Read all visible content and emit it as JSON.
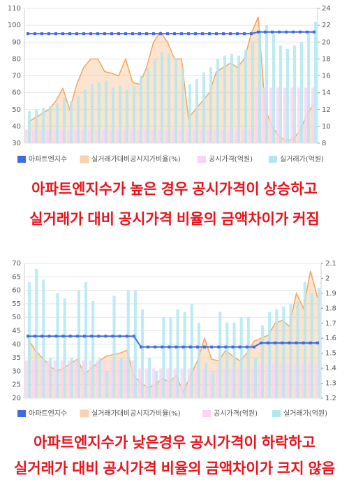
{
  "chart_data": [
    {
      "type": "combo",
      "ylim": [
        30,
        110
      ],
      "yticks": [
        30,
        40,
        50,
        60,
        70,
        80,
        90,
        100,
        110
      ],
      "y2lim": [
        8,
        24
      ],
      "y2ticks": [
        8,
        10,
        12,
        14,
        16,
        18,
        20,
        22,
        24
      ],
      "grid": true,
      "series": [
        {
          "name": "아파트엔지수",
          "kind": "line",
          "color": "#4169e1",
          "values": [
            95,
            95,
            95,
            95,
            95,
            95,
            95,
            95,
            95,
            95,
            95,
            95,
            95,
            95,
            95,
            95,
            95,
            95,
            95,
            95,
            95,
            95,
            95,
            95,
            95,
            95,
            95,
            95,
            95,
            95,
            95,
            95,
            95,
            96,
            96,
            96,
            96,
            96,
            96,
            96,
            96,
            96
          ]
        },
        {
          "name": "실거래가대비공시지가비율(%)",
          "kind": "area",
          "axis": "y2",
          "color": "#f4a460",
          "values": [
            10.5,
            11,
            11.5,
            12,
            13,
            14.5,
            12,
            15,
            17,
            18,
            18,
            16.5,
            16.3,
            16,
            18,
            15.2,
            15,
            17,
            20,
            21.2,
            20,
            18,
            18,
            11,
            12,
            13,
            14,
            16.5,
            17,
            17.5,
            17,
            18,
            21,
            23,
            12,
            10,
            8.8,
            8.3,
            8.5,
            9.5,
            11.5,
            12.7
          ]
        },
        {
          "name": "공시가격(억원)",
          "kind": "bar",
          "color": "#ffd1f5",
          "values": [
            38,
            38,
            38,
            38,
            38,
            38,
            38,
            38,
            38,
            38,
            38,
            38,
            38,
            38,
            38,
            38,
            38,
            38,
            38,
            38,
            38,
            38,
            38,
            38,
            38,
            38,
            38,
            38,
            38,
            38,
            38,
            38,
            38,
            63,
            63,
            63,
            63,
            63,
            63,
            63,
            63,
            63
          ]
        },
        {
          "name": "실거래가(억원)",
          "kind": "bar",
          "color": "#b0e8f0",
          "values": [
            49,
            50,
            51,
            52,
            54,
            57,
            55,
            58,
            62,
            65,
            66,
            67,
            63,
            64,
            62,
            64,
            70,
            75,
            80,
            84,
            83,
            80,
            75,
            65,
            68,
            72,
            75,
            80,
            82,
            83,
            82,
            85,
            90,
            97,
            100,
            95,
            88,
            86,
            88,
            90,
            95,
            102
          ]
        }
      ],
      "annotations": [
        "아파트엔지수가 높은 경우 공시가격이 상승하고",
        "실거래가 대비 공시가격 비율의 금액차이가 커짐"
      ]
    },
    {
      "type": "combo",
      "ylim": [
        20,
        70
      ],
      "yticks": [
        20,
        25,
        30,
        35,
        40,
        45,
        50,
        55,
        60,
        65,
        70
      ],
      "y2lim": [
        1.2,
        2.1
      ],
      "y2ticks": [
        1.2,
        1.3,
        1.4,
        1.5,
        1.6,
        1.7,
        1.8,
        1.9,
        2,
        2.1
      ],
      "grid": true,
      "series": [
        {
          "name": "아파트엔지수",
          "kind": "line",
          "color": "#4169e1",
          "values": [
            43,
            43,
            43,
            43,
            43,
            43,
            43,
            43,
            43,
            43,
            43,
            43,
            43,
            43,
            43,
            43,
            39,
            39,
            39,
            39,
            39,
            39,
            39,
            39,
            39,
            39,
            39,
            39,
            39,
            39,
            39,
            39,
            39,
            40.5,
            40.5,
            40.5,
            40.5,
            40.5,
            40.5,
            40.5,
            40.5,
            40.5
          ]
        },
        {
          "name": "실거래가대비공시지가비율(%)",
          "kind": "area",
          "axis": "y2",
          "color": "#f4a460",
          "values": [
            1.6,
            1.52,
            1.47,
            1.42,
            1.38,
            1.4,
            1.43,
            1.46,
            1.36,
            1.4,
            1.44,
            1.48,
            1.49,
            1.5,
            1.52,
            1.35,
            1.3,
            1.27,
            1.29,
            1.33,
            1.31,
            1.35,
            1.24,
            1.35,
            1.45,
            1.6,
            1.46,
            1.45,
            1.52,
            1.48,
            1.45,
            1.5,
            1.58,
            1.6,
            1.62,
            1.7,
            1.72,
            1.68,
            1.9,
            1.8,
            2.05,
            1.87
          ]
        },
        {
          "name": "공시가격(억원)",
          "kind": "bar",
          "color": "#ffd1f5",
          "values": [
            34,
            34,
            34,
            34,
            34,
            34,
            34,
            34,
            34,
            34,
            34,
            34,
            34,
            34,
            34,
            34,
            31,
            31,
            31,
            31,
            31,
            31,
            31,
            31,
            31,
            31,
            31,
            31,
            31,
            31,
            31,
            31,
            31,
            33,
            33,
            33,
            33,
            33,
            33,
            33,
            33,
            33
          ]
        },
        {
          "name": "실거래가(억원)",
          "kind": "bar",
          "color": "#b0e8f0",
          "values": [
            63,
            68,
            64,
            35,
            59,
            57,
            35,
            60,
            63,
            56,
            35,
            30,
            58,
            35,
            60,
            60,
            53,
            35,
            30,
            50,
            50,
            53,
            52,
            55,
            48,
            33,
            30,
            52,
            48,
            48,
            50,
            50,
            35,
            47,
            52,
            53,
            54,
            55,
            56,
            63,
            59,
            61
          ]
        }
      ],
      "annotations": [
        "아파트엔지수가 낮은경우 공시가격이 하락하고",
        "실거래가 대비 공시가격 비율의 금액차이가 크지 않음"
      ]
    }
  ]
}
